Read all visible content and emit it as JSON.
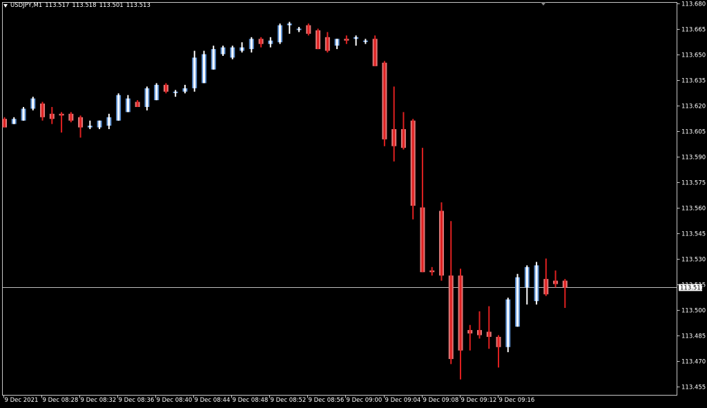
{
  "window": {
    "symbol": "USDJPY,M1",
    "ohlc": [
      "113.517",
      "113.518",
      "113.501",
      "113.513"
    ]
  },
  "colors": {
    "background": "#000000",
    "frame": "#c8c8c8",
    "text": "#ffffff",
    "bull_body": "#ffffff",
    "bear_body": "#e02020",
    "bull_shadow": "#5b8fd0",
    "bear_shadow": "#e07878",
    "price_line": "#c0c0c0"
  },
  "chart_data": {
    "type": "candlestick",
    "symbol": "USDJPY",
    "timeframe": "M1",
    "ylim": [
      113.45,
      113.68
    ],
    "y_ticks": [
      "113.680",
      "113.665",
      "113.650",
      "113.635",
      "113.620",
      "113.605",
      "113.590",
      "113.575",
      "113.560",
      "113.545",
      "113.530",
      "113.515",
      "113.500",
      "113.485",
      "113.470",
      "113.455"
    ],
    "x_ticks": [
      "9 Dec 2021",
      "9 Dec 08:28",
      "9 Dec 08:32",
      "9 Dec 08:36",
      "9 Dec 08:40",
      "9 Dec 08:44",
      "9 Dec 08:48",
      "9 Dec 08:52",
      "9 Dec 08:56",
      "9 Dec 09:00",
      "9 Dec 09:04",
      "9 Dec 09:08",
      "9 Dec 09:12",
      "9 Dec 09:16"
    ],
    "current_price": "113.513",
    "candles": [
      [
        113.612,
        113.613,
        113.607,
        113.607
      ],
      [
        113.609,
        113.613,
        113.609,
        113.612
      ],
      [
        113.611,
        113.619,
        113.611,
        113.618
      ],
      [
        113.618,
        113.625,
        113.617,
        113.624
      ],
      [
        113.621,
        113.622,
        113.611,
        113.613
      ],
      [
        113.615,
        113.619,
        113.609,
        113.612
      ],
      [
        113.615,
        113.616,
        113.604,
        113.614
      ],
      [
        113.615,
        113.616,
        113.61,
        113.611
      ],
      [
        113.613,
        113.614,
        113.601,
        113.607
      ],
      [
        113.607,
        113.611,
        113.606,
        113.608
      ],
      [
        113.607,
        113.611,
        113.606,
        113.611
      ],
      [
        113.608,
        113.615,
        113.606,
        113.613
      ],
      [
        113.611,
        113.627,
        113.611,
        113.626
      ],
      [
        113.616,
        113.626,
        113.616,
        113.624
      ],
      [
        113.622,
        113.623,
        113.619,
        113.619
      ],
      [
        113.619,
        113.631,
        113.617,
        113.63
      ],
      [
        113.623,
        113.633,
        113.623,
        113.632
      ],
      [
        113.632,
        113.633,
        113.627,
        113.628
      ],
      [
        113.628,
        113.629,
        113.625,
        113.628
      ],
      [
        113.628,
        113.632,
        113.627,
        113.63
      ],
      [
        113.63,
        113.652,
        113.628,
        113.648
      ],
      [
        113.633,
        113.652,
        113.633,
        113.65
      ],
      [
        113.641,
        113.655,
        113.641,
        113.653
      ],
      [
        113.65,
        113.655,
        113.649,
        113.654
      ],
      [
        113.648,
        113.655,
        113.647,
        113.654
      ],
      [
        113.652,
        113.657,
        113.651,
        113.654
      ],
      [
        113.653,
        113.66,
        113.651,
        113.659
      ],
      [
        113.659,
        113.66,
        113.654,
        113.656
      ],
      [
        113.656,
        113.66,
        113.654,
        113.658
      ],
      [
        113.657,
        113.668,
        113.656,
        113.667
      ],
      [
        113.667,
        113.669,
        113.662,
        113.668
      ],
      [
        113.665,
        113.666,
        113.663,
        113.665
      ],
      [
        113.667,
        113.668,
        113.661,
        113.662
      ],
      [
        113.664,
        113.665,
        113.653,
        113.653
      ],
      [
        113.66,
        113.663,
        113.651,
        113.652
      ],
      [
        113.655,
        113.659,
        113.653,
        113.659
      ],
      [
        113.659,
        113.661,
        113.656,
        113.658
      ],
      [
        113.659,
        113.661,
        113.655,
        113.66
      ],
      [
        113.658,
        113.659,
        113.656,
        113.658
      ],
      [
        113.659,
        113.661,
        113.643,
        113.643
      ],
      [
        113.645,
        113.646,
        113.596,
        113.6
      ],
      [
        113.606,
        113.631,
        113.587,
        113.596
      ],
      [
        113.606,
        113.616,
        113.594,
        113.595
      ],
      [
        113.611,
        113.612,
        113.553,
        113.561
      ],
      [
        113.56,
        113.595,
        113.524,
        113.522
      ],
      [
        113.523,
        113.525,
        113.52,
        113.522
      ],
      [
        113.558,
        113.563,
        113.517,
        113.52
      ],
      [
        113.52,
        113.552,
        113.468,
        113.471
      ],
      [
        113.52,
        113.524,
        113.459,
        113.476
      ],
      [
        113.488,
        113.491,
        113.476,
        113.486
      ],
      [
        113.488,
        113.499,
        113.483,
        113.485
      ],
      [
        113.487,
        113.502,
        113.477,
        113.484
      ],
      [
        113.484,
        113.485,
        113.466,
        113.478
      ],
      [
        113.478,
        113.507,
        113.475,
        113.506
      ],
      [
        113.49,
        113.521,
        113.49,
        113.519
      ],
      [
        113.513,
        113.526,
        113.503,
        113.525
      ],
      [
        113.505,
        113.528,
        113.503,
        113.526
      ],
      [
        113.518,
        113.53,
        113.508,
        113.509
      ],
      [
        113.517,
        113.523,
        113.513,
        113.515
      ],
      [
        113.517,
        113.518,
        113.501,
        113.513
      ]
    ]
  }
}
